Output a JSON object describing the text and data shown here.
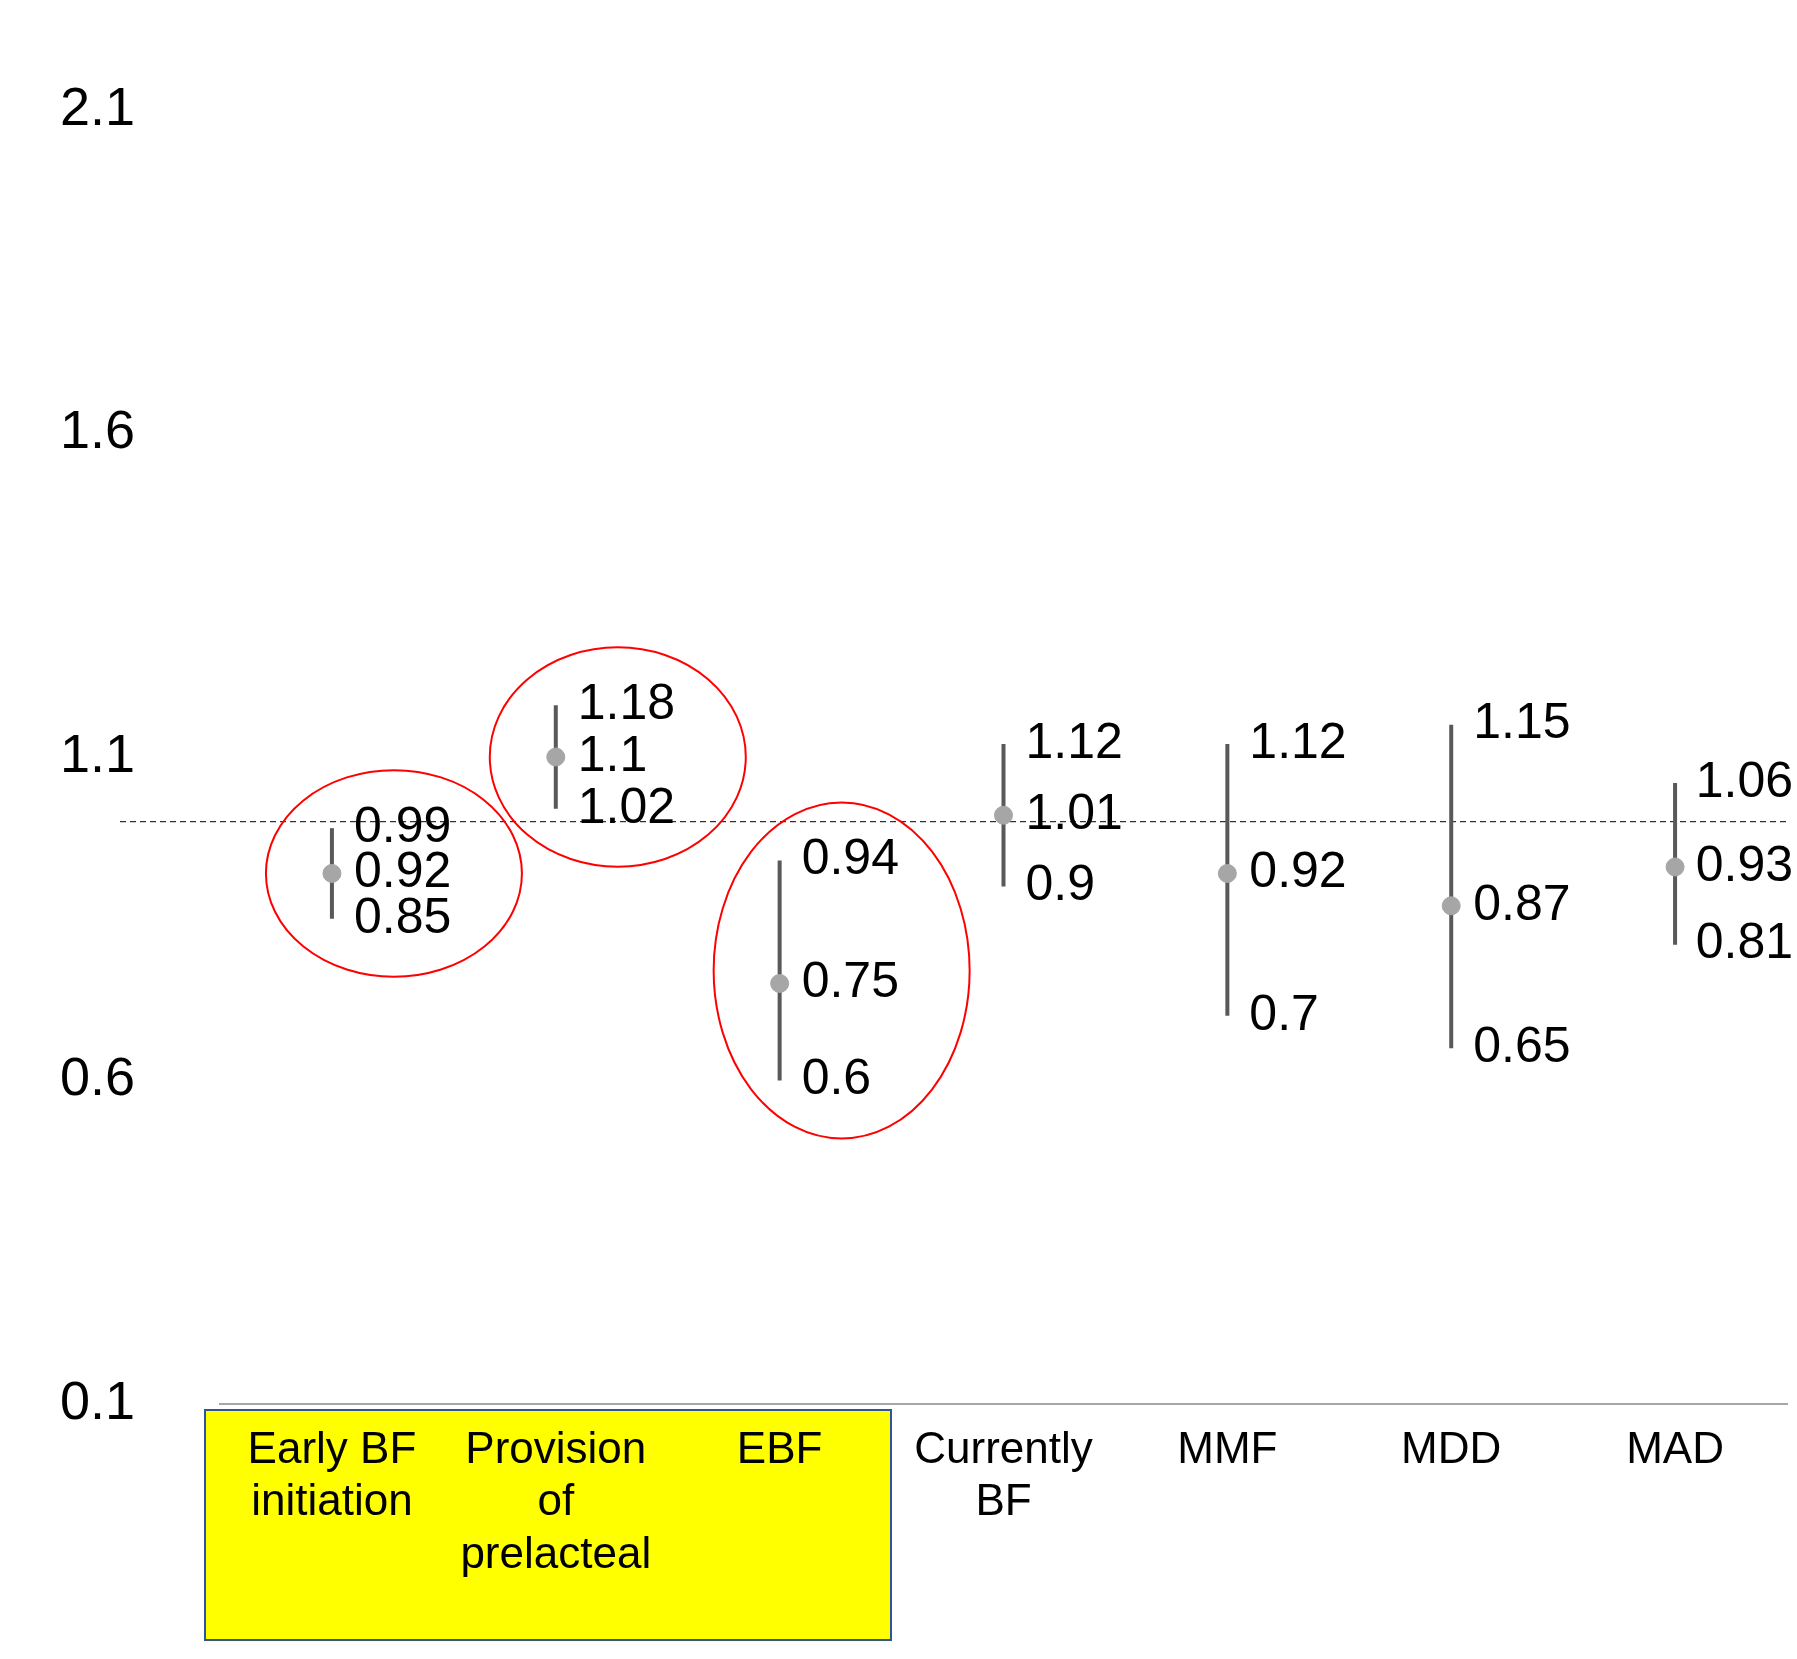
{
  "chart_data": {
    "type": "scatter",
    "categories": [
      "Early BF initiation",
      "Provision of prelacteal",
      "EBF",
      "Currently BF",
      "MMF",
      "MDD",
      "MAD"
    ],
    "series": [
      {
        "color": "#a6a6a6",
        "values": [
          0.92,
          1.1,
          0.75,
          1.01,
          0.92,
          0.87,
          0.93
        ],
        "errors": [
          [
            0.85,
            0.99
          ],
          [
            1.02,
            1.18
          ],
          [
            0.6,
            0.94
          ],
          [
            0.9,
            1.12
          ],
          [
            0.7,
            1.12
          ],
          [
            0.65,
            1.15
          ],
          [
            0.81,
            1.06
          ]
        ]
      }
    ],
    "ylim": [
      0.1,
      2.1
    ],
    "yticks": [
      0.1,
      0.6,
      1.1,
      1.6,
      2.1
    ],
    "grid": false,
    "legend": false,
    "marker": "circle",
    "data_labels": true,
    "ref_lines": [
      {
        "axis": "y",
        "value": 1,
        "color": "#000000",
        "line_style": "dashed"
      }
    ],
    "annotations": [
      {
        "text": "0.99",
        "x": "Early BF initiation",
        "y": 0.99
      },
      {
        "text": "0.85",
        "x": "Early BF initiation",
        "y": 0.85
      },
      {
        "text": "1.18",
        "x": "Provision of prelacteal",
        "y": 1.18
      },
      {
        "text": "1.02",
        "x": "Provision of prelacteal",
        "y": 1.02
      },
      {
        "text": "0.94",
        "x": "EBF",
        "y": 0.94
      },
      {
        "text": "0.6",
        "x": "EBF",
        "y": 0.6
      },
      {
        "text": "1.12",
        "x": "Currently BF",
        "y": 1.12
      },
      {
        "text": "0.9",
        "x": "Currently BF",
        "y": 0.9
      },
      {
        "text": "1.12",
        "x": "MMF",
        "y": 1.12
      },
      {
        "text": "0.7",
        "x": "MMF",
        "y": 0.7
      },
      {
        "text": "1.15",
        "x": "MDD",
        "y": 1.15
      },
      {
        "text": "0.65",
        "x": "MDD",
        "y": 0.65
      },
      {
        "text": "1.06",
        "x": "MAD",
        "y": 1.06
      },
      {
        "text": "0.81",
        "x": "MAD",
        "y": 0.81
      }
    ]
  }
}
